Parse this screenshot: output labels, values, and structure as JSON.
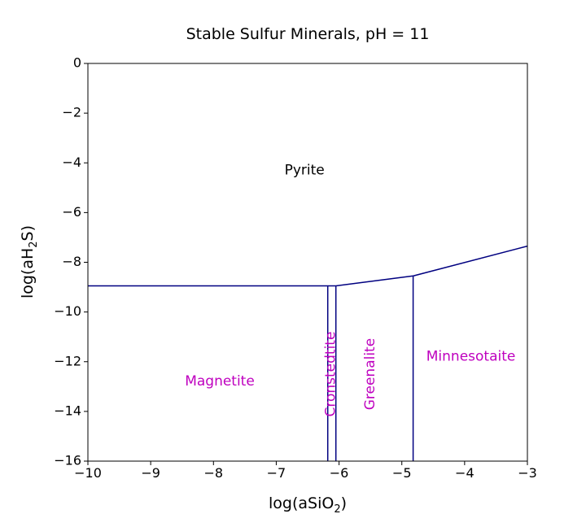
{
  "chart_data": {
    "type": "line",
    "title": "Stable Sulfur Minerals, pH = 11",
    "xlabel": {
      "pre": "log(aSiO",
      "sub": "2",
      "post": ")"
    },
    "ylabel": {
      "pre": "log(aH",
      "sub": "2",
      "post": "S)"
    },
    "xlim": [
      -10,
      -3
    ],
    "ylim": [
      -16,
      0
    ],
    "xticks": [
      -10,
      -9,
      -8,
      -7,
      -6,
      -5,
      -4,
      -3
    ],
    "yticks": [
      0,
      -2,
      -4,
      -6,
      -8,
      -10,
      -12,
      -14,
      -16
    ],
    "grid": false,
    "line_color": "#000080",
    "series": [
      {
        "x": [
          -10,
          -6.18,
          -6.05,
          -4.82,
          -3
        ],
        "y": [
          -8.95,
          -8.95,
          -8.95,
          -8.55,
          -7.35
        ]
      },
      {
        "x": [
          -6.18,
          -6.18
        ],
        "y": [
          -8.95,
          -16
        ]
      },
      {
        "x": [
          -6.05,
          -6.05
        ],
        "y": [
          -8.95,
          -16
        ]
      },
      {
        "x": [
          -4.82,
          -4.82
        ],
        "y": [
          -8.55,
          -16
        ]
      }
    ],
    "regions": [
      {
        "label": "Pyrite",
        "x": -6.55,
        "y": -4.3,
        "rotate": 0,
        "color": "#000000"
      },
      {
        "label": "Magnetite",
        "x": -7.9,
        "y": -12.8,
        "rotate": 0,
        "color": "#bf00bf"
      },
      {
        "label": "Cronstedtite",
        "x": -6.13,
        "y": -12.5,
        "rotate": -90,
        "color": "#bf00bf"
      },
      {
        "label": "Greenalite",
        "x": -5.5,
        "y": -12.5,
        "rotate": -90,
        "color": "#bf00bf"
      },
      {
        "label": "Minnesotaite",
        "x": -3.9,
        "y": -11.8,
        "rotate": 0,
        "color": "#bf00bf"
      }
    ]
  }
}
